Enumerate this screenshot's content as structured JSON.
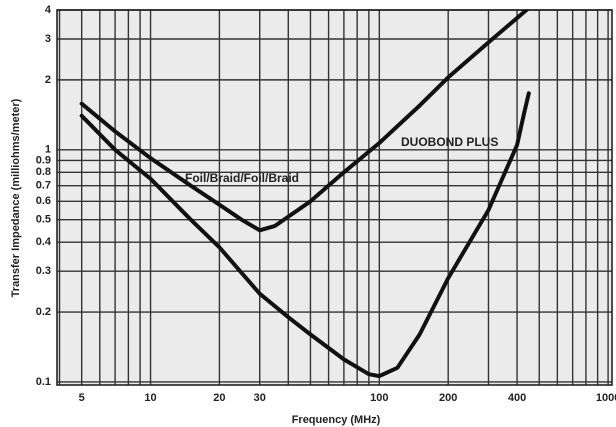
{
  "chart_data": {
    "type": "line",
    "log_x": true,
    "log_y": true,
    "grid": true,
    "x_label": "Frequency (MHz)",
    "y_label": "Transfer Impedance (milliohms/meter)",
    "xlim": [
      3.9,
      1040
    ],
    "ylim": [
      0.097,
      4
    ],
    "xticks": [
      5,
      10,
      20,
      30,
      100,
      200,
      400,
      1000
    ],
    "xgrid": [
      4,
      5,
      6,
      7,
      8,
      9,
      10,
      20,
      30,
      40,
      50,
      60,
      70,
      80,
      90,
      100,
      200,
      300,
      400,
      500,
      600,
      700,
      800,
      900,
      1000
    ],
    "yticks": [
      0.1,
      0.2,
      0.3,
      0.4,
      0.5,
      0.6,
      0.7,
      0.8,
      0.9,
      1,
      2,
      3,
      4
    ],
    "series": [
      {
        "name": "Foil/Braid/Foil/Braid",
        "color": "#111111",
        "x": [
          5,
          7,
          10,
          15,
          20,
          25,
          30,
          35,
          50,
          70,
          100,
          150,
          200,
          300,
          440
        ],
        "values": [
          1.58,
          1.2,
          0.92,
          0.7,
          0.58,
          0.5,
          0.45,
          0.47,
          0.6,
          0.8,
          1.07,
          1.55,
          2.05,
          2.9,
          4
        ]
      },
      {
        "name": "DUOBOND PLUS",
        "color": "#111111",
        "x": [
          5,
          7,
          10,
          15,
          20,
          30,
          40,
          50,
          70,
          90,
          100,
          120,
          150,
          200,
          300,
          400,
          430,
          450
        ],
        "values": [
          1.4,
          1.0,
          0.75,
          0.5,
          0.38,
          0.24,
          0.19,
          0.16,
          0.125,
          0.108,
          0.106,
          0.115,
          0.16,
          0.28,
          0.55,
          1.05,
          1.45,
          1.75
        ]
      }
    ]
  }
}
